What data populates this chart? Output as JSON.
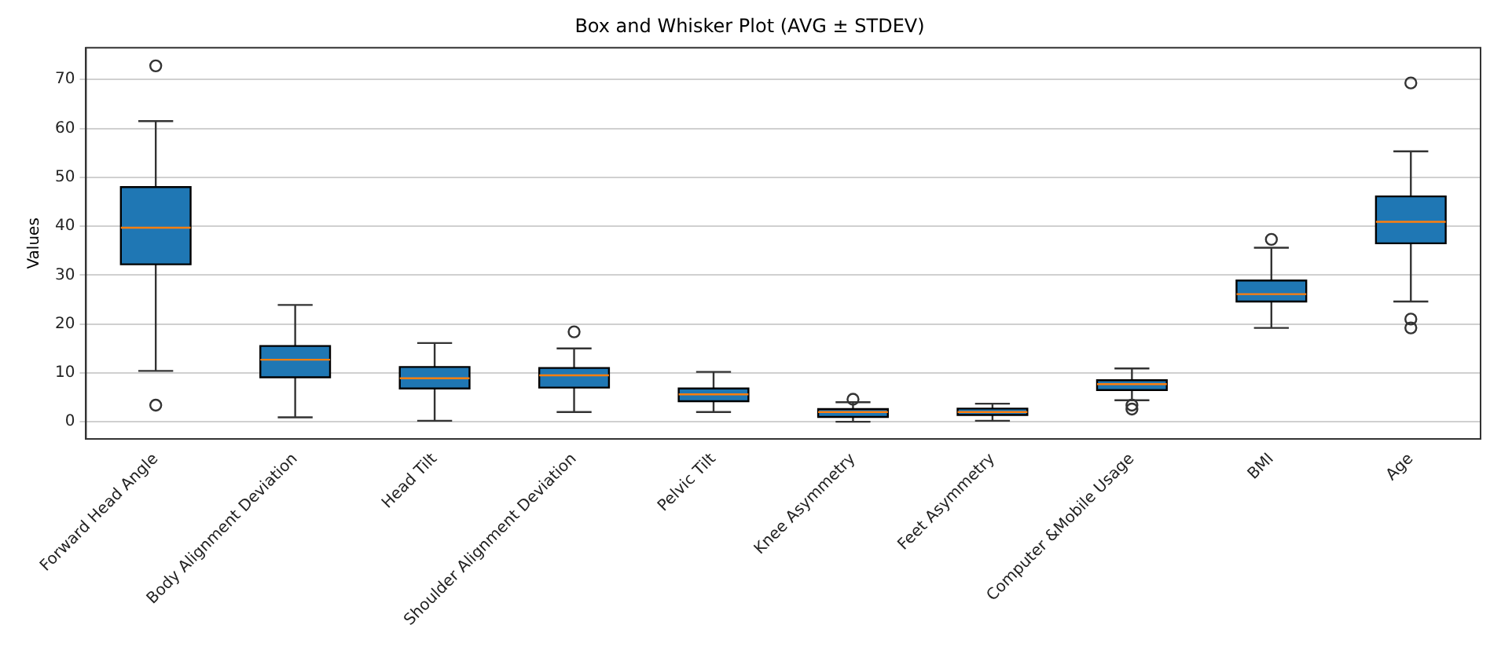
{
  "chart_data": {
    "type": "box",
    "title": "Box and Whisker Plot (AVG ± STDEV)",
    "ylabel": "Values",
    "categories": [
      "Forward Head Angle",
      "Body Alignment Deviation",
      "Head Tilt",
      "Shoulder Alignment Deviation",
      "Pelvic Tilt",
      "Knee Asymmetry",
      "Feet Asymmetry",
      "Computer &Mobile Usage",
      "BMI",
      "Age"
    ],
    "boxes": [
      {
        "low": 10.4,
        "q1": 32.2,
        "median": 39.7,
        "q3": 48,
        "high": 61.5,
        "outliers": [
          72.8,
          3.4
        ]
      },
      {
        "low": 0.9,
        "q1": 9.1,
        "median": 12.7,
        "q3": 15.5,
        "high": 23.9
      },
      {
        "low": 0.2,
        "q1": 6.8,
        "median": 8.9,
        "q3": 11.2,
        "high": 16.1
      },
      {
        "low": 2,
        "q1": 7,
        "median": 9.5,
        "q3": 11,
        "high": 15,
        "outliers": [
          18.4
        ]
      },
      {
        "low": 2,
        "q1": 4.2,
        "median": 5.6,
        "q3": 6.8,
        "high": 10.2
      },
      {
        "low": 0,
        "q1": 1,
        "median": 2,
        "q3": 2.6,
        "high": 4,
        "outliers": [
          4.6
        ]
      },
      {
        "low": 0.2,
        "q1": 1.4,
        "median": 2,
        "q3": 2.7,
        "high": 3.7
      },
      {
        "low": 4.4,
        "q1": 6.5,
        "median": 7.7,
        "q3": 8.5,
        "high": 10.9,
        "outliers": [
          3.4,
          2.6
        ]
      },
      {
        "low": 19.2,
        "q1": 24.6,
        "median": 26.1,
        "q3": 28.9,
        "high": 35.6,
        "outliers": [
          37.3
        ]
      },
      {
        "low": 24.6,
        "q1": 36.5,
        "median": 40.9,
        "q3": 46.1,
        "high": 55.3,
        "outliers": [
          69.3,
          21,
          19.2
        ]
      }
    ],
    "color": "#1f77b4",
    "ylim": [
      -3.5,
      76.5
    ],
    "yticks": [
      0,
      10,
      20,
      30,
      40,
      50,
      60,
      70
    ],
    "grid": "y",
    "legend": false
  }
}
